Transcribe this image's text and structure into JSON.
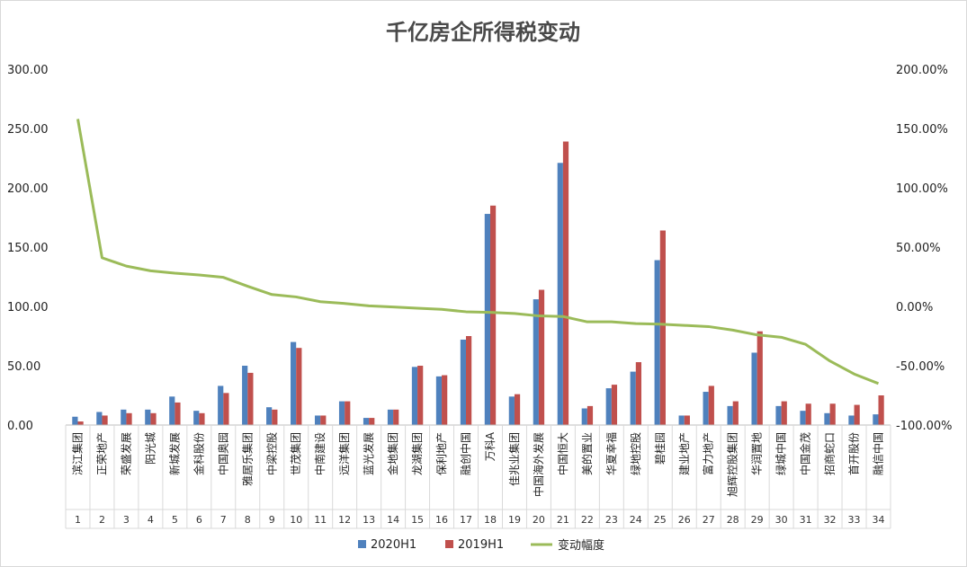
{
  "chart_data": {
    "type": "bar",
    "title": "千亿房企所得税变动",
    "categories": [
      "滨江集团",
      "正荣地产",
      "荣盛发展",
      "阳光城",
      "新城发展",
      "金科股份",
      "中国奥园",
      "雅居乐集团",
      "中梁控股",
      "世茂集团",
      "中南建设",
      "远洋集团",
      "蓝光发展",
      "金地集团",
      "龙湖集团",
      "保利地产",
      "融创中国",
      "万科A",
      "佳兆业集团",
      "中国海外发展",
      "中国恒大",
      "美的置业",
      "华夏幸福",
      "绿地控股",
      "碧桂园",
      "建业地产",
      "富力地产",
      "旭辉控股集团",
      "华润置地",
      "绿城中国",
      "中国金茂",
      "招商蛇口",
      "首开股份",
      "融信中国"
    ],
    "index_labels": [
      "1",
      "2",
      "3",
      "4",
      "5",
      "6",
      "7",
      "8",
      "9",
      "10",
      "11",
      "12",
      "13",
      "14",
      "15",
      "16",
      "17",
      "18",
      "19",
      "20",
      "21",
      "22",
      "23",
      "24",
      "25",
      "26",
      "27",
      "28",
      "29",
      "30",
      "31",
      "32",
      "33",
      "34"
    ],
    "series": [
      {
        "name": "2020H1",
        "type": "bar",
        "axis": "left",
        "color": "#4f81bd",
        "values": [
          7,
          11,
          13,
          13,
          24,
          12,
          33,
          50,
          15,
          70,
          8,
          20,
          6,
          13,
          49,
          41,
          72,
          178,
          24,
          106,
          221,
          14,
          31,
          45,
          139,
          8,
          28,
          16,
          61,
          16,
          12,
          10,
          8,
          9
        ]
      },
      {
        "name": "2019H1",
        "type": "bar",
        "axis": "left",
        "color": "#c0504d",
        "values": [
          3,
          8,
          10,
          10,
          19,
          10,
          27,
          44,
          13,
          65,
          8,
          20,
          6,
          13,
          50,
          42,
          75,
          185,
          26,
          114,
          239,
          16,
          34,
          53,
          164,
          8,
          33,
          20,
          79,
          20,
          18,
          18,
          17,
          25
        ]
      },
      {
        "name": "变动幅度",
        "type": "line",
        "axis": "right",
        "color": "#9bbb59",
        "values": [
          158,
          41,
          34,
          30,
          28,
          26.5,
          24.5,
          17,
          10,
          8,
          4,
          2.5,
          0.5,
          -0.5,
          -1.5,
          -2.5,
          -4.5,
          -5,
          -6,
          -8,
          -8.5,
          -13,
          -13,
          -14.5,
          -15,
          -16,
          -17,
          -20,
          -24,
          -26,
          -32,
          -46,
          -57,
          -65
        ]
      }
    ],
    "y_left": {
      "min": 0,
      "max": 300,
      "ticks": [
        "0.00",
        "50.00",
        "100.00",
        "150.00",
        "200.00",
        "250.00",
        "300.00"
      ]
    },
    "y_right": {
      "min": -100,
      "max": 200,
      "ticks": [
        "-100.00%",
        "-50.00%",
        "0.00%",
        "50.00%",
        "100.00%",
        "150.00%",
        "200.00%"
      ]
    },
    "grid": false,
    "legend_position": "bottom"
  },
  "legend": [
    {
      "label": "2020H1",
      "color": "#4f81bd",
      "kind": "bar"
    },
    {
      "label": "2019H1",
      "color": "#c0504d",
      "kind": "bar"
    },
    {
      "label": "变动幅度",
      "color": "#9bbb59",
      "kind": "line"
    }
  ]
}
